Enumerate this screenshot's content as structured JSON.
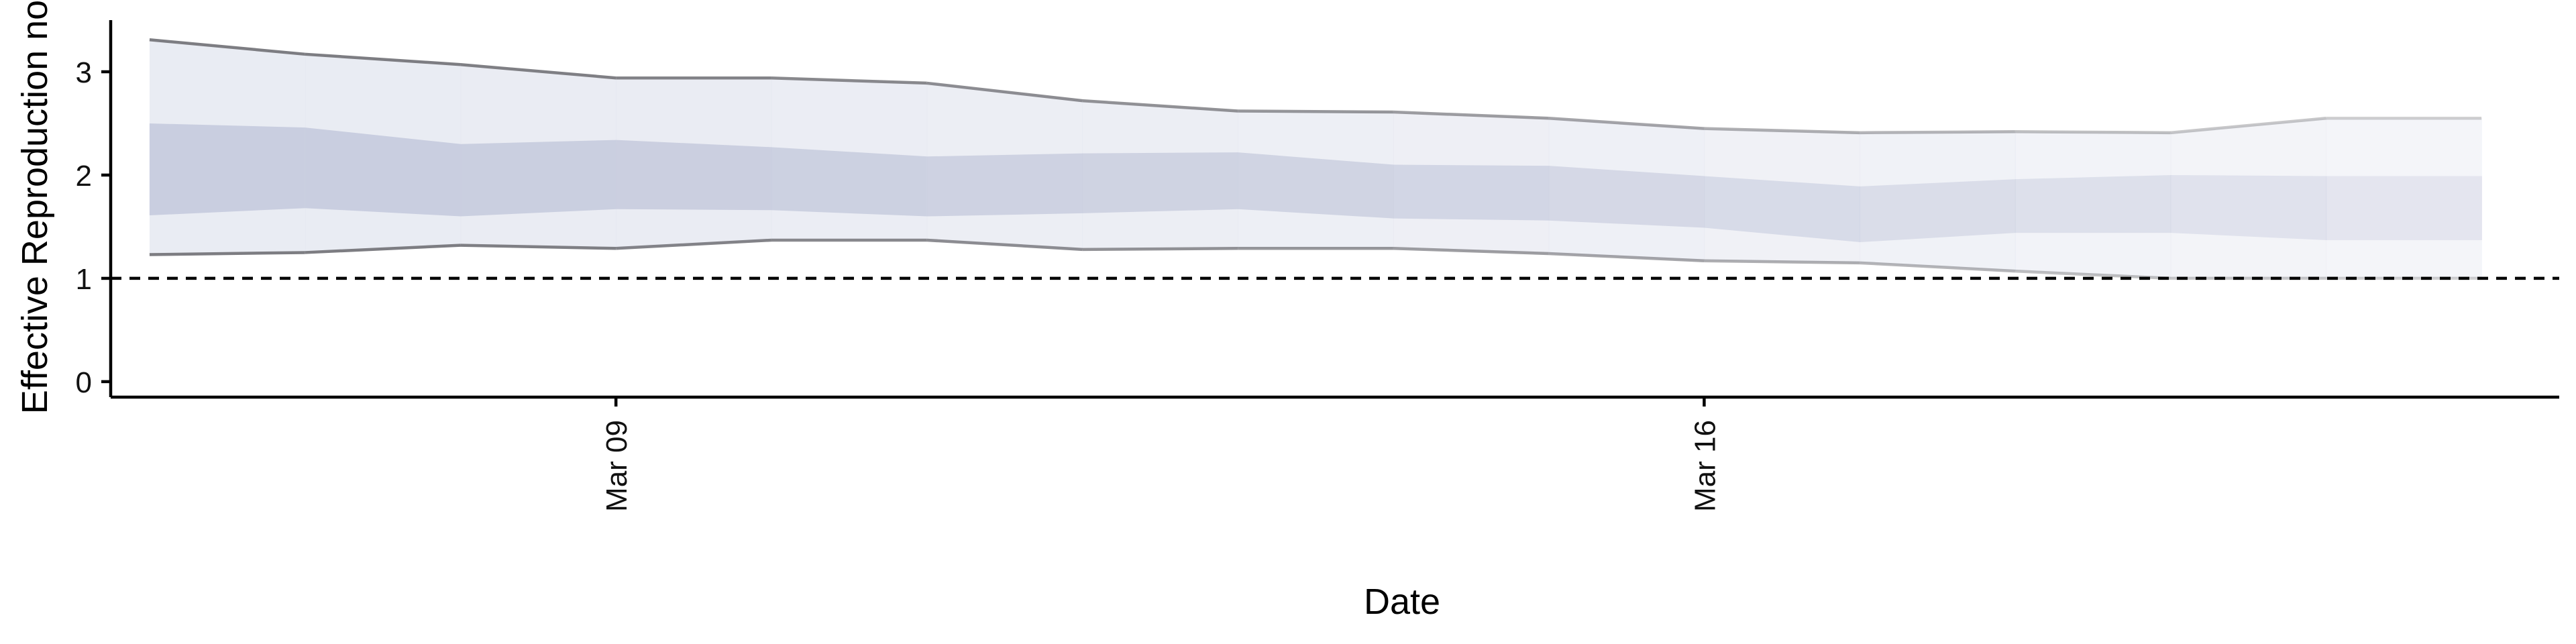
{
  "chart_data": {
    "type": "area",
    "xlabel": "Date",
    "ylabel": "Effective Reproduction no.",
    "x_tick_labels": [
      "Mar 09",
      "Mar 16"
    ],
    "x_ticks": [
      "2020-03-09",
      "2020-03-16"
    ],
    "y_ticks": [
      0,
      1,
      2,
      3
    ],
    "ylim": [
      -0.15,
      3.5
    ],
    "xlim": [
      "2020-03-05T18:00",
      "2020-03-21T12:00"
    ],
    "reference_line": {
      "y": 1,
      "style": "dashed"
    },
    "grid": false,
    "legend": "none",
    "colors": {
      "band_outer": "#e4e7f0",
      "band_inner": "#c4c9dc",
      "bound_line": "#7a7a7f"
    },
    "x": [
      "2020-03-06",
      "2020-03-07",
      "2020-03-08",
      "2020-03-09",
      "2020-03-10",
      "2020-03-11",
      "2020-03-12",
      "2020-03-13",
      "2020-03-14",
      "2020-03-15",
      "2020-03-16",
      "2020-03-17",
      "2020-03-18",
      "2020-03-19",
      "2020-03-20",
      "2020-03-21"
    ],
    "series": [
      {
        "name": "",
        "band": "outer_upper",
        "values": [
          3.31,
          3.17,
          3.07,
          2.94,
          2.94,
          2.89,
          2.72,
          2.62,
          2.61,
          2.55,
          2.45,
          2.41,
          2.42,
          2.41,
          2.55,
          2.55
        ]
      },
      {
        "name": "",
        "band": "inner_upper",
        "values": [
          2.5,
          2.46,
          2.3,
          2.34,
          2.27,
          2.18,
          2.21,
          2.22,
          2.1,
          2.09,
          1.99,
          1.89,
          1.96,
          2.0,
          1.99,
          1.99
        ]
      },
      {
        "name": "",
        "band": "inner_lower",
        "values": [
          1.61,
          1.68,
          1.6,
          1.67,
          1.66,
          1.6,
          1.63,
          1.67,
          1.58,
          1.56,
          1.49,
          1.35,
          1.44,
          1.44,
          1.37,
          1.37
        ]
      },
      {
        "name": "",
        "band": "outer_lower",
        "values": [
          1.23,
          1.25,
          1.32,
          1.29,
          1.37,
          1.37,
          1.28,
          1.29,
          1.29,
          1.24,
          1.17,
          1.15,
          1.07,
          1.0,
          1.0,
          1.0
        ]
      }
    ],
    "alpha": [
      1.0,
      1.0,
      0.98,
      0.95,
      0.9,
      0.86,
      0.82,
      0.78,
      0.72,
      0.66,
      0.58,
      0.52,
      0.44,
      0.38,
      0.3,
      0.3
    ]
  }
}
